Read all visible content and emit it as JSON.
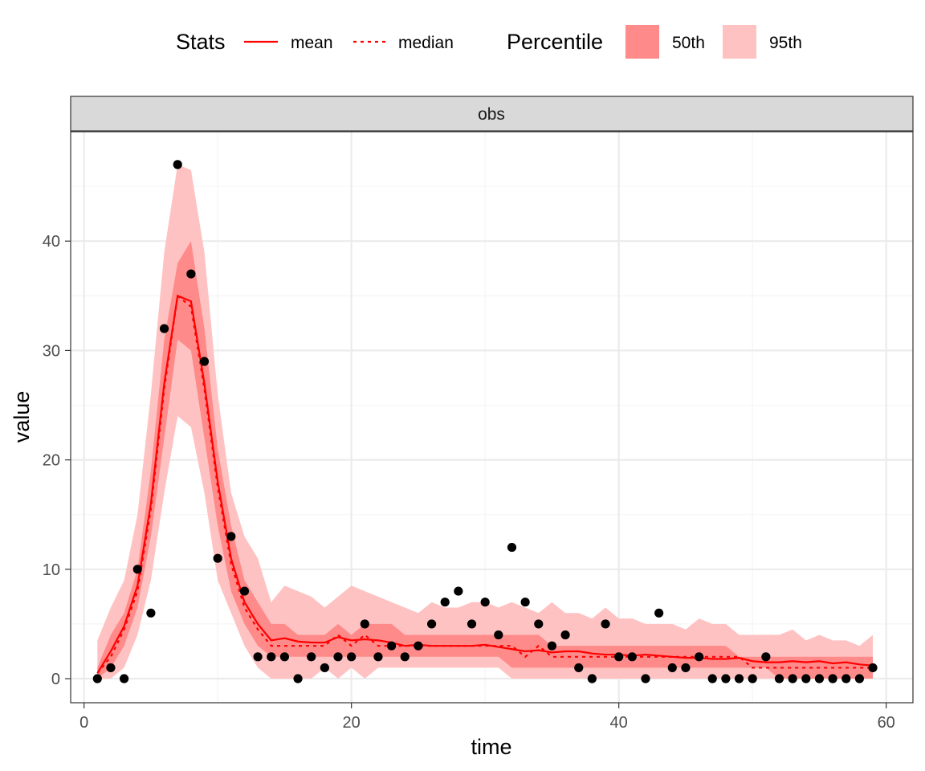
{
  "chart_data": {
    "type": "line",
    "xlabel": "time",
    "ylabel": "value",
    "facet_label": "obs",
    "xlim": [
      -1,
      62
    ],
    "ylim": [
      -2.2,
      50
    ],
    "x_ticks": [
      0,
      20,
      40,
      60
    ],
    "y_ticks": [
      0,
      10,
      20,
      30,
      40
    ],
    "grid": true,
    "legend": {
      "position": "top",
      "stats_title": "Stats",
      "stats_items": [
        "mean",
        "median"
      ],
      "percentile_title": "Percentile",
      "percentile_items": [
        "50th",
        "95th"
      ]
    },
    "colors": {
      "line": "#ff0000",
      "band50": "#ff8a8a",
      "band95": "#ffc2c2",
      "points": "#000000",
      "strip_bg": "#d9d9d9",
      "grid": "#ebebeb"
    },
    "observations": {
      "x": [
        1,
        2,
        3,
        4,
        5,
        6,
        7,
        8,
        9,
        10,
        11,
        12,
        13,
        14,
        15,
        16,
        17,
        18,
        19,
        20,
        21,
        22,
        23,
        24,
        25,
        26,
        27,
        28,
        29,
        30,
        31,
        32,
        33,
        34,
        35,
        36,
        37,
        38,
        39,
        40,
        41,
        42,
        43,
        44,
        45,
        46,
        47,
        48,
        49,
        50,
        51,
        52,
        53,
        54,
        55,
        56,
        57,
        58,
        59
      ],
      "y": [
        0,
        1,
        0,
        10,
        6,
        32,
        47,
        37,
        29,
        11,
        13,
        8,
        2,
        2,
        2,
        0,
        2,
        1,
        2,
        2,
        5,
        2,
        3,
        2,
        3,
        5,
        7,
        8,
        5,
        7,
        4,
        12,
        7,
        5,
        3,
        4,
        1,
        0,
        5,
        2,
        2,
        0,
        6,
        1,
        1,
        2,
        0,
        0,
        0,
        0,
        2,
        0,
        0,
        0,
        0,
        0,
        0,
        0,
        1
      ]
    },
    "mean": {
      "x": [
        1,
        2,
        3,
        4,
        5,
        6,
        7,
        8,
        9,
        10,
        11,
        12,
        13,
        14,
        15,
        16,
        17,
        18,
        19,
        20,
        21,
        22,
        23,
        24,
        25,
        26,
        27,
        28,
        29,
        30,
        31,
        32,
        33,
        34,
        35,
        36,
        37,
        38,
        39,
        40,
        41,
        42,
        43,
        44,
        45,
        46,
        47,
        48,
        49,
        50,
        51,
        52,
        53,
        54,
        55,
        56,
        57,
        58,
        59
      ],
      "y": [
        0.5,
        2.5,
        4.8,
        8.5,
        16,
        27,
        35,
        34.5,
        27,
        18,
        11,
        7,
        5,
        3.5,
        3.7,
        3.4,
        3.3,
        3.3,
        3.8,
        3.5,
        3.6,
        3.5,
        3.3,
        3,
        3.1,
        3,
        3,
        3,
        3,
        3.1,
        2.9,
        2.7,
        2.5,
        2.6,
        2.4,
        2.5,
        2.5,
        2.3,
        2.2,
        2.2,
        2.1,
        2.2,
        2.1,
        2,
        1.9,
        1.9,
        1.8,
        1.8,
        1.9,
        1.6,
        1.5,
        1.5,
        1.6,
        1.5,
        1.6,
        1.4,
        1.5,
        1.3,
        1.2
      ]
    },
    "median": {
      "x": [
        1,
        2,
        3,
        4,
        5,
        6,
        7,
        8,
        9,
        10,
        11,
        12,
        13,
        14,
        15,
        16,
        17,
        18,
        19,
        20,
        21,
        22,
        23,
        24,
        25,
        26,
        27,
        28,
        29,
        30,
        31,
        32,
        33,
        34,
        35,
        36,
        37,
        38,
        39,
        40,
        41,
        42,
        43,
        44,
        45,
        46,
        47,
        48,
        49,
        50,
        51,
        52,
        53,
        54,
        55,
        56,
        57,
        58,
        59
      ],
      "y": [
        0.5,
        2,
        4.5,
        8,
        15.5,
        26.5,
        35,
        34,
        26.5,
        17.5,
        10.5,
        6.5,
        4.5,
        3,
        3,
        3,
        3,
        3,
        4,
        3,
        4,
        3,
        3,
        3,
        3,
        3,
        3,
        3,
        3,
        3,
        3,
        3,
        2,
        3,
        2,
        2,
        2,
        2,
        2,
        2,
        2,
        2,
        2,
        2,
        2,
        2,
        2,
        2,
        2,
        1,
        1,
        1,
        1,
        1,
        1,
        1,
        1,
        1,
        1
      ]
    },
    "band50": {
      "x": [
        1,
        2,
        3,
        4,
        5,
        6,
        7,
        8,
        9,
        10,
        11,
        12,
        13,
        14,
        15,
        16,
        17,
        18,
        19,
        20,
        21,
        22,
        23,
        24,
        25,
        26,
        27,
        28,
        29,
        30,
        31,
        32,
        33,
        34,
        35,
        36,
        37,
        38,
        39,
        40,
        41,
        42,
        43,
        44,
        45,
        46,
        47,
        48,
        49,
        50,
        51,
        52,
        53,
        54,
        55,
        56,
        57,
        58,
        59
      ],
      "lower": [
        0,
        1,
        3,
        6.5,
        13,
        22,
        31,
        30,
        22,
        14,
        8,
        5,
        3,
        2,
        2,
        2,
        2,
        2,
        2,
        2,
        2,
        2,
        2,
        2,
        2,
        2,
        2,
        2,
        2,
        2,
        2,
        1,
        1,
        1,
        1,
        1,
        1,
        1,
        1,
        1,
        1,
        1,
        1,
        1,
        1,
        1,
        1,
        1,
        1,
        1,
        1,
        0,
        0,
        0,
        0,
        0,
        0,
        0,
        0
      ],
      "upper": [
        1,
        4,
        6,
        10,
        19,
        31,
        38,
        40,
        32,
        21,
        14,
        9,
        7,
        5,
        5,
        4,
        4,
        4,
        5,
        4,
        5,
        5,
        5,
        4,
        4,
        4,
        4,
        4,
        4,
        4,
        4,
        4,
        4,
        4,
        3,
        3,
        3,
        3,
        3,
        3,
        3,
        3,
        3,
        3,
        3,
        3,
        3,
        3,
        2,
        2,
        2,
        2,
        2,
        2,
        2,
        2,
        2,
        2,
        2
      ]
    },
    "band95": {
      "x": [
        1,
        2,
        3,
        4,
        5,
        6,
        7,
        8,
        9,
        10,
        11,
        12,
        13,
        14,
        15,
        16,
        17,
        18,
        19,
        20,
        21,
        22,
        23,
        24,
        25,
        26,
        27,
        28,
        29,
        30,
        31,
        32,
        33,
        34,
        35,
        36,
        37,
        38,
        39,
        40,
        41,
        42,
        43,
        44,
        45,
        46,
        47,
        48,
        49,
        50,
        51,
        52,
        53,
        54,
        55,
        56,
        57,
        58,
        59
      ],
      "lower": [
        0,
        0,
        1,
        4,
        9,
        17,
        24,
        23,
        17,
        9,
        6,
        3,
        1,
        0,
        0,
        0,
        0,
        1,
        0,
        1,
        0,
        1,
        1,
        1,
        1,
        1,
        1,
        1,
        1,
        1,
        1,
        0,
        0,
        0,
        0,
        0,
        0,
        0,
        0,
        0,
        0,
        0,
        0,
        0,
        0,
        0,
        0,
        0,
        0,
        0,
        0,
        0,
        0,
        0,
        0,
        0,
        0,
        0,
        0
      ],
      "upper": [
        3.5,
        6.5,
        9,
        15,
        26,
        39,
        47,
        46.5,
        39,
        26,
        17,
        13,
        11,
        7,
        8.5,
        8,
        7.5,
        6.5,
        7.5,
        8.5,
        8,
        7.5,
        7,
        6.5,
        6,
        7,
        6.5,
        6.5,
        7,
        7,
        6.5,
        7,
        6.5,
        6,
        7,
        6,
        6,
        5.5,
        6.5,
        5.5,
        5.5,
        5,
        5,
        5,
        4.5,
        5.5,
        5,
        5,
        4,
        4,
        4,
        4,
        4.5,
        3.5,
        4,
        3.5,
        3.5,
        3,
        4
      ]
    }
  }
}
